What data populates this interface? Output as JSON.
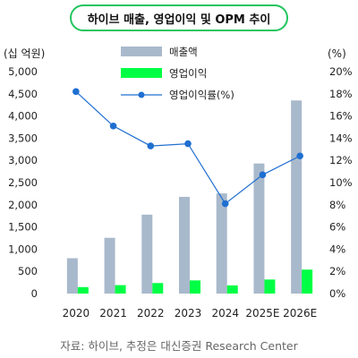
{
  "chart_title": "하이브 매출, 영업이익 및 OPM 추이",
  "source_note": "자료: 하이브, 추정은 대신증권 Research Center",
  "chart_data": {
    "type": "bar",
    "categories": [
      "2020",
      "2021",
      "2022",
      "2023",
      "2024",
      "2025E",
      "2026E"
    ],
    "series": [
      {
        "name": "매출액",
        "kind": "bar",
        "axis": "left",
        "color": "#a9b9cc",
        "values": [
          796,
          1256,
          1778,
          2178,
          2256,
          2930,
          4350
        ]
      },
      {
        "name": "영업이익",
        "kind": "bar",
        "axis": "left",
        "color": "#00ff44",
        "values": [
          146,
          190,
          237,
          296,
          184,
          316,
          540
        ]
      },
      {
        "name": "영업이익률(%)",
        "kind": "line",
        "axis": "right",
        "color": "#1f6fd1",
        "values": [
          18.2,
          15.1,
          13.3,
          13.5,
          8.1,
          10.7,
          12.4
        ]
      }
    ],
    "y_left": {
      "unit": "(십 억원)",
      "min": 0,
      "max": 5000,
      "step": 500,
      "ticks": [
        "0",
        "500",
        "1,000",
        "1,500",
        "2,000",
        "2,500",
        "3,000",
        "3,500",
        "4,000",
        "4,500",
        "5,000"
      ]
    },
    "y_right": {
      "unit": "(%)",
      "min": 0,
      "max": 20,
      "step": 2,
      "ticks": [
        "0%",
        "2%",
        "4%",
        "6%",
        "8%",
        "10%",
        "12%",
        "14%",
        "16%",
        "18%",
        "20%"
      ]
    },
    "grid": false,
    "legend_position": "top-center"
  }
}
